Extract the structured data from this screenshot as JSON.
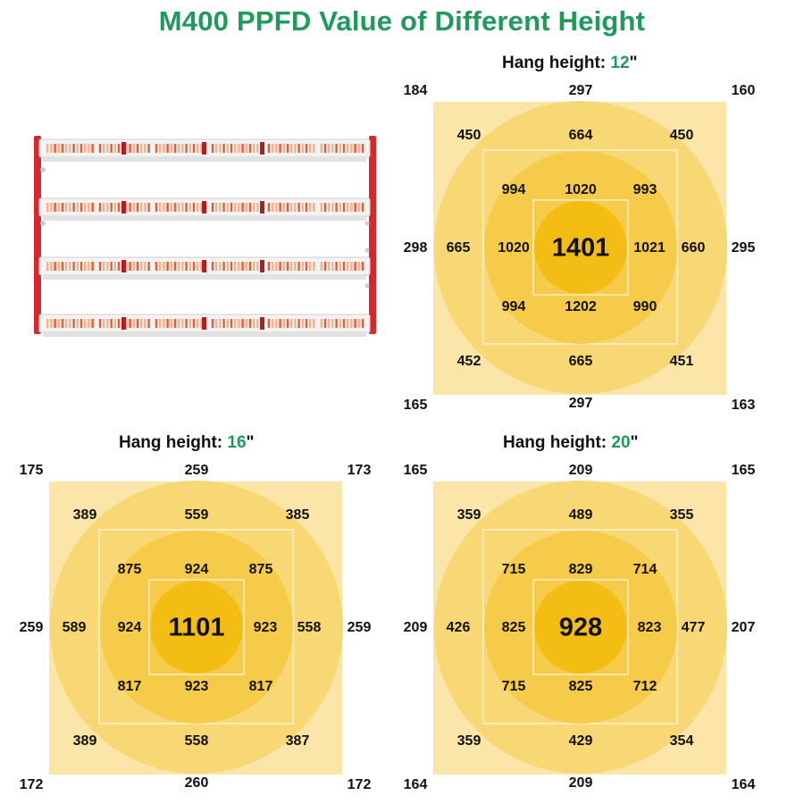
{
  "title": "M400 PPFD Value of Different Height",
  "heading_prefix": "Hang height:",
  "unit_mark": "\"",
  "colors": {
    "title": "#1f9a5a",
    "light_square": "#fbe5a8",
    "outer_circle": "#f8d775",
    "mid_circle": "#f6cb4a",
    "center_circle": "#f4bd14",
    "fixture_frame": "#d9272e"
  },
  "grids": [
    {
      "height": "12",
      "corners": [
        "184",
        "297",
        "160",
        "298",
        "295",
        "165",
        "297",
        "163"
      ],
      "ring2": [
        "450",
        "664",
        "450",
        "665",
        "660",
        "452",
        "665",
        "451"
      ],
      "ring1": [
        "994",
        "1020",
        "993",
        "1020",
        "1021",
        "994",
        "1202",
        "990"
      ],
      "center": "1401"
    },
    {
      "height": "16",
      "corners": [
        "175",
        "259",
        "173",
        "259",
        "259",
        "172",
        "260",
        "172"
      ],
      "ring2": [
        "389",
        "559",
        "385",
        "589",
        "558",
        "389",
        "558",
        "387"
      ],
      "ring1": [
        "875",
        "924",
        "875",
        "924",
        "923",
        "817",
        "923",
        "817"
      ],
      "center": "1101"
    },
    {
      "height": "20",
      "corners": [
        "165",
        "209",
        "165",
        "209",
        "207",
        "164",
        "209",
        "164"
      ],
      "ring2": [
        "359",
        "489",
        "355",
        "426",
        "477",
        "359",
        "429",
        "354"
      ],
      "ring1": [
        "715",
        "829",
        "714",
        "825",
        "823",
        "715",
        "825",
        "712"
      ],
      "center": "928"
    }
  ]
}
